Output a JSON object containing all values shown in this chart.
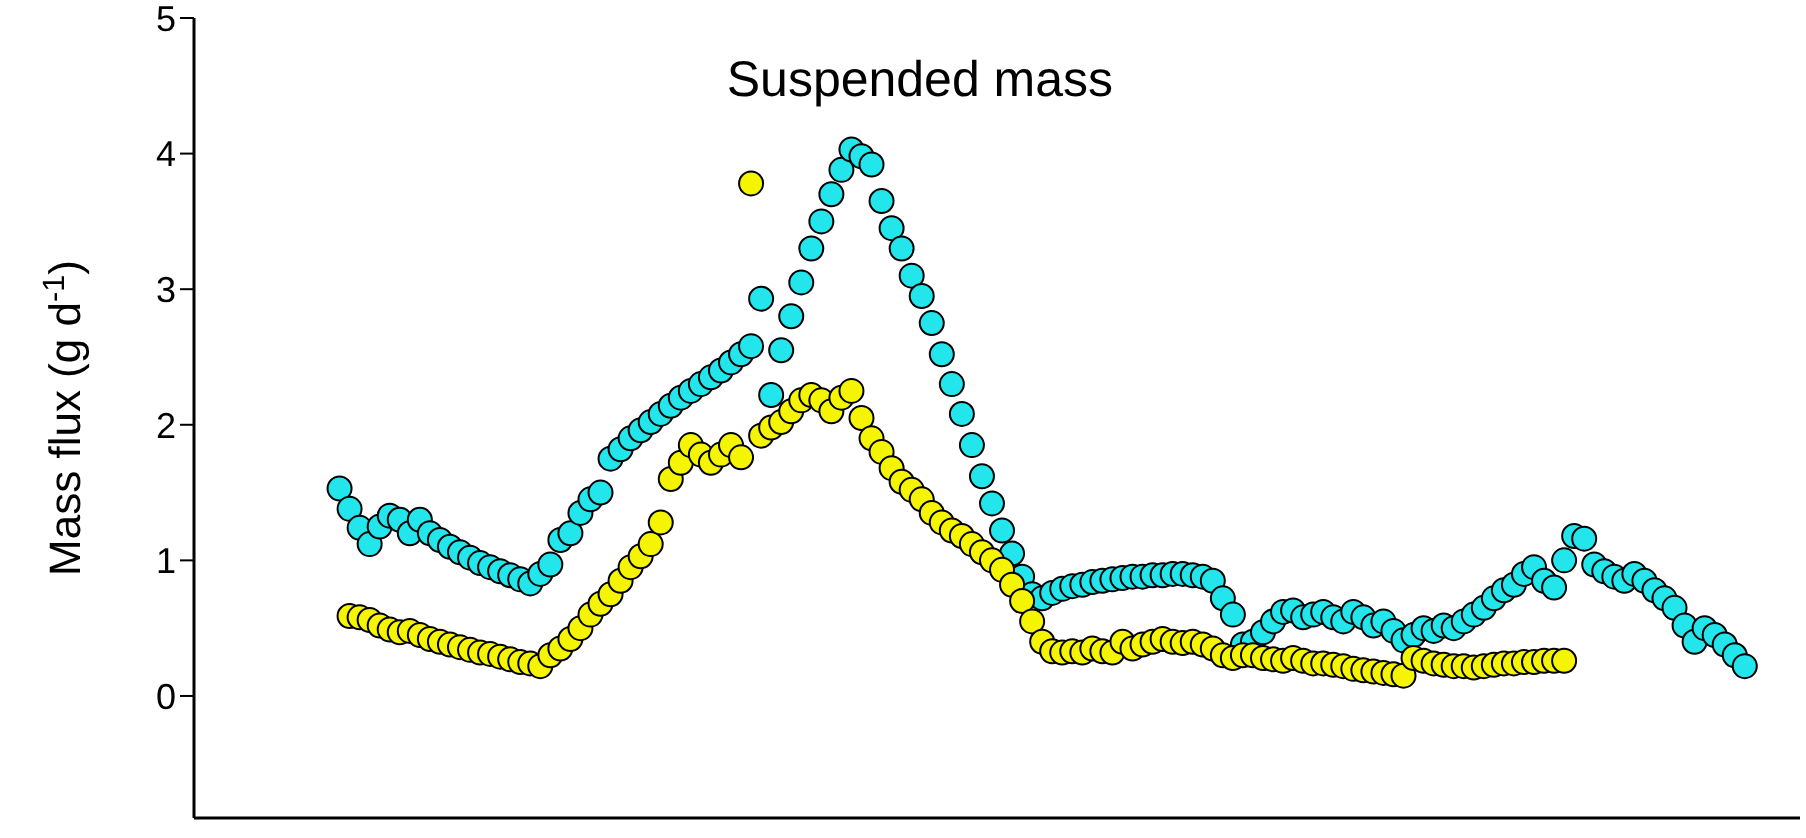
{
  "chart_data": {
    "type": "scatter",
    "title": "Suspended mass",
    "ylabel": "Mass flux (g d$^{-1}$)",
    "marker": "circle",
    "tick_labels": "y",
    "ylim": [
      -0.9,
      5
    ],
    "yticks": [
      0,
      1,
      2,
      3,
      4,
      5
    ],
    "categories": [
      null,
      null,
      null,
      null,
      null,
      null,
      null,
      null,
      null,
      null,
      null,
      null,
      null,
      null,
      null,
      null,
      null,
      null,
      null,
      null,
      null,
      null,
      null,
      null,
      null,
      null,
      null,
      null,
      null,
      null,
      null,
      null,
      null,
      null,
      null,
      null,
      null,
      null,
      null,
      null,
      null,
      null,
      null,
      null,
      null,
      null,
      null,
      null,
      null,
      null,
      null,
      null,
      null,
      null,
      null,
      null,
      null,
      null,
      null,
      null,
      null,
      null,
      null,
      null,
      null,
      null,
      null,
      null,
      null,
      null,
      null,
      null,
      null,
      null,
      null,
      null,
      null,
      null,
      null,
      null,
      null,
      null,
      null,
      null,
      null,
      null,
      null,
      null,
      null,
      null,
      null,
      null,
      null,
      null,
      null,
      null,
      null,
      null,
      null,
      null,
      null,
      null,
      null,
      null,
      null,
      null,
      null,
      null,
      null,
      null,
      null,
      null,
      null,
      null,
      null,
      null,
      null,
      null,
      null,
      null,
      null,
      null,
      null,
      null,
      null,
      null,
      null,
      null,
      null,
      null,
      null,
      null,
      null,
      null,
      null,
      null,
      null,
      null,
      null,
      null,
      null,
      null,
      null,
      null,
      null,
      null,
      null,
      null,
      null,
      null,
      null,
      null,
      null,
      null,
      null,
      null,
      null,
      null,
      null,
      null
    ],
    "series": [
      {
        "color": "#22e6ec",
        "values": [
          null,
          null,
          null,
          null,
          null,
          null,
          null,
          null,
          null,
          null,
          null,
          null,
          null,
          null,
          1.53,
          1.38,
          1.24,
          1.12,
          1.25,
          1.33,
          1.3,
          1.2,
          1.3,
          1.2,
          1.15,
          1.1,
          1.06,
          1.02,
          0.98,
          0.95,
          0.92,
          0.89,
          0.86,
          0.83,
          0.9,
          0.97,
          1.15,
          1.2,
          1.35,
          1.45,
          1.5,
          1.75,
          1.82,
          1.9,
          1.96,
          2.02,
          2.08,
          2.14,
          2.2,
          2.25,
          2.3,
          2.35,
          2.4,
          2.46,
          2.52,
          2.58,
          2.93,
          2.22,
          2.55,
          2.8,
          3.05,
          3.3,
          3.5,
          3.7,
          3.88,
          4.03,
          3.98,
          3.92,
          3.65,
          3.45,
          3.3,
          3.1,
          2.95,
          2.75,
          2.52,
          2.3,
          2.08,
          1.85,
          1.62,
          1.42,
          1.22,
          1.05,
          0.88,
          0.75,
          0.72,
          0.76,
          0.79,
          0.81,
          0.82,
          0.84,
          0.85,
          0.86,
          0.87,
          0.88,
          0.88,
          0.89,
          0.89,
          0.9,
          0.9,
          0.89,
          0.88,
          0.85,
          0.72,
          0.6,
          0.38,
          0.4,
          0.47,
          0.55,
          0.62,
          0.63,
          0.58,
          0.6,
          0.62,
          0.58,
          0.55,
          0.62,
          0.58,
          0.52,
          0.55,
          0.48,
          0.41,
          0.45,
          0.5,
          0.48,
          0.52,
          0.5,
          0.55,
          0.6,
          0.65,
          0.72,
          0.78,
          0.82,
          0.9,
          0.95,
          0.85,
          0.8,
          1.0,
          1.18,
          1.16,
          0.97,
          0.92,
          0.88,
          0.85,
          0.9,
          0.85,
          0.78,
          0.72,
          0.65,
          0.52,
          0.4,
          0.5,
          0.45,
          0.38,
          0.3,
          0.22,
          null,
          null,
          null,
          null,
          null
        ]
      },
      {
        "color": "#f5f500",
        "values": [
          null,
          null,
          null,
          null,
          null,
          null,
          null,
          null,
          null,
          null,
          null,
          null,
          null,
          null,
          null,
          0.59,
          0.58,
          0.56,
          0.52,
          0.49,
          0.47,
          0.48,
          0.45,
          0.42,
          0.4,
          0.38,
          0.36,
          0.34,
          0.32,
          0.31,
          0.29,
          0.27,
          0.25,
          0.24,
          0.22,
          0.3,
          0.35,
          0.42,
          0.5,
          0.6,
          0.68,
          0.75,
          0.85,
          0.95,
          1.03,
          1.12,
          1.28,
          1.6,
          1.72,
          1.85,
          1.78,
          1.72,
          1.78,
          1.85,
          1.76,
          3.78,
          1.92,
          1.98,
          2.02,
          2.1,
          2.18,
          2.22,
          2.18,
          2.1,
          2.2,
          2.25,
          2.05,
          1.9,
          1.8,
          1.68,
          1.58,
          1.52,
          1.45,
          1.35,
          1.28,
          1.22,
          1.18,
          1.12,
          1.06,
          1.0,
          0.93,
          0.82,
          0.7,
          0.55,
          0.4,
          0.33,
          0.32,
          0.33,
          0.32,
          0.35,
          0.33,
          0.32,
          0.4,
          0.35,
          0.38,
          0.4,
          0.42,
          0.4,
          0.39,
          0.4,
          0.38,
          0.35,
          0.3,
          0.28,
          0.3,
          0.3,
          0.28,
          0.27,
          0.26,
          0.28,
          0.26,
          0.24,
          0.24,
          0.23,
          0.22,
          0.2,
          0.19,
          0.18,
          0.17,
          0.16,
          0.15,
          0.28,
          0.26,
          0.24,
          0.23,
          0.22,
          0.22,
          0.21,
          0.22,
          0.23,
          0.24,
          0.24,
          0.25,
          0.25,
          0.26,
          0.26,
          0.26,
          null,
          null,
          null,
          null,
          null,
          null,
          null,
          null,
          null,
          null,
          null,
          null,
          null,
          null,
          null,
          null,
          null,
          null,
          null,
          null,
          null,
          null,
          null
        ]
      }
    ]
  }
}
